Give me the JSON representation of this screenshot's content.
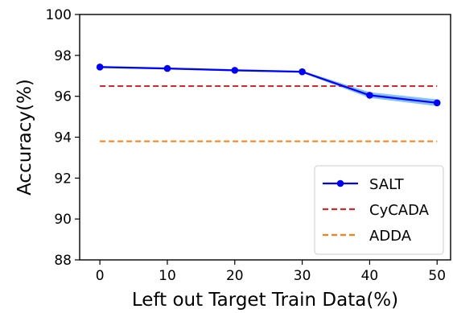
{
  "chart_data": {
    "type": "line",
    "title": "",
    "xlabel": "Left out Target Train Data(%)",
    "ylabel": "Accuracy(%)",
    "xlim": [
      -3,
      52
    ],
    "ylim": [
      88,
      100
    ],
    "x_ticks": [
      0,
      10,
      20,
      30,
      40,
      50
    ],
    "y_ticks": [
      88,
      90,
      92,
      94,
      96,
      98,
      100
    ],
    "grid": false,
    "legend_position": "lower-right",
    "series": [
      {
        "name": "SALT",
        "style": "solid-with-markers",
        "color": "#0000ff",
        "band_color": "#4da6ff",
        "x": [
          0,
          10,
          20,
          30,
          40,
          50
        ],
        "y": [
          97.43,
          97.36,
          97.27,
          97.2,
          96.05,
          95.68
        ],
        "band_lower": [
          97.38,
          97.31,
          97.22,
          97.15,
          95.92,
          95.52
        ],
        "band_upper": [
          97.48,
          97.41,
          97.32,
          97.25,
          96.2,
          95.85
        ]
      },
      {
        "name": "CyCADA",
        "style": "dashed",
        "color": "#d62728",
        "x": [
          0,
          50
        ],
        "y": [
          96.5,
          96.5
        ]
      },
      {
        "name": "ADDA",
        "style": "dashed",
        "color": "#ff7f0e",
        "x": [
          0,
          50
        ],
        "y": [
          93.8,
          93.8
        ]
      }
    ]
  }
}
